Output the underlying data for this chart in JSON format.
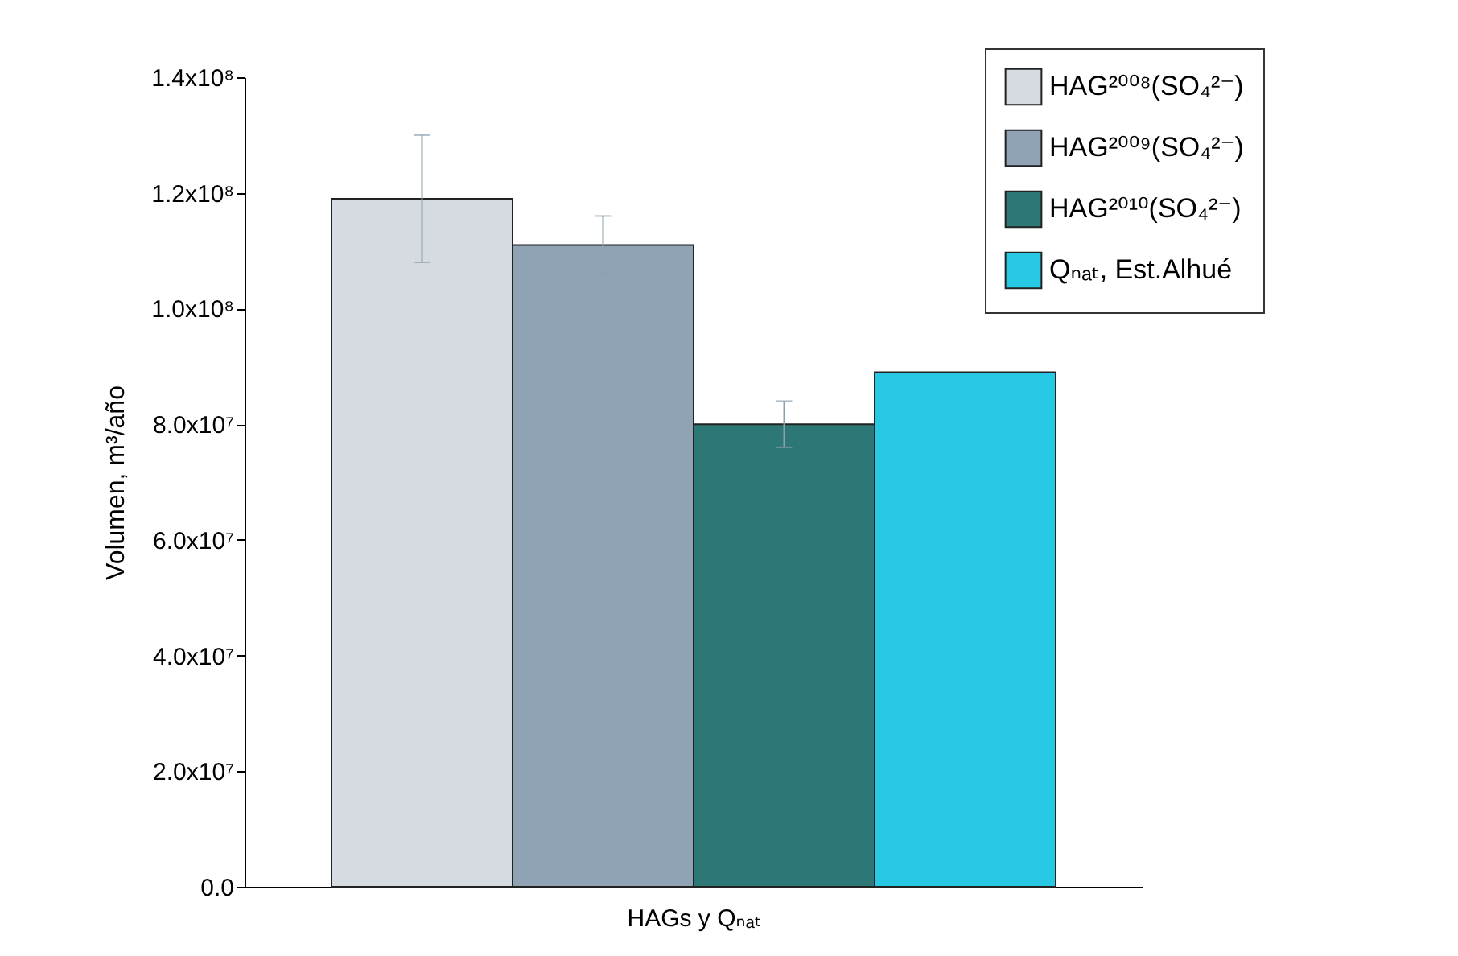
{
  "chart_data": {
    "type": "bar",
    "xlabel": "HAGs y Qₙₐₜ",
    "ylabel": "Volumen, m³/año",
    "categories": [
      null
    ],
    "series": [
      {
        "name": "HAG²⁰⁰⁸(SO₄²⁻)",
        "color": "#d5dbe0",
        "values": [
          119000000
        ],
        "errors": [
          11000000
        ]
      },
      {
        "name": "HAG²⁰⁰⁹(SO₄²⁻)",
        "color": "#8fa3b5",
        "values": [
          111000000
        ],
        "errors": [
          5000000
        ]
      },
      {
        "name": "HAG²⁰¹⁰(SO₄²⁻)",
        "color": "#2e7777",
        "values": [
          80000000
        ],
        "errors": [
          4000000
        ]
      },
      {
        "name": "Qₙₐₜ, Est.Alhué",
        "color": "#27c8e4",
        "values": [
          89000000
        ],
        "errors": [
          null
        ]
      }
    ],
    "ylim": [
      0,
      140000000
    ],
    "yticks": [
      {
        "value": 0,
        "label": "0.0"
      },
      {
        "value": 20000000,
        "label": "2.0x10⁷"
      },
      {
        "value": 40000000,
        "label": "4.0x10⁷"
      },
      {
        "value": 60000000,
        "label": "6.0x10⁷"
      },
      {
        "value": 80000000,
        "label": "8.0x10⁷"
      },
      {
        "value": 100000000,
        "label": "1.0x10⁸"
      },
      {
        "value": 120000000,
        "label": "1.2x10⁸"
      },
      {
        "value": 140000000,
        "label": "1.4x10⁸"
      }
    ],
    "grid": false,
    "legend": "top right"
  }
}
